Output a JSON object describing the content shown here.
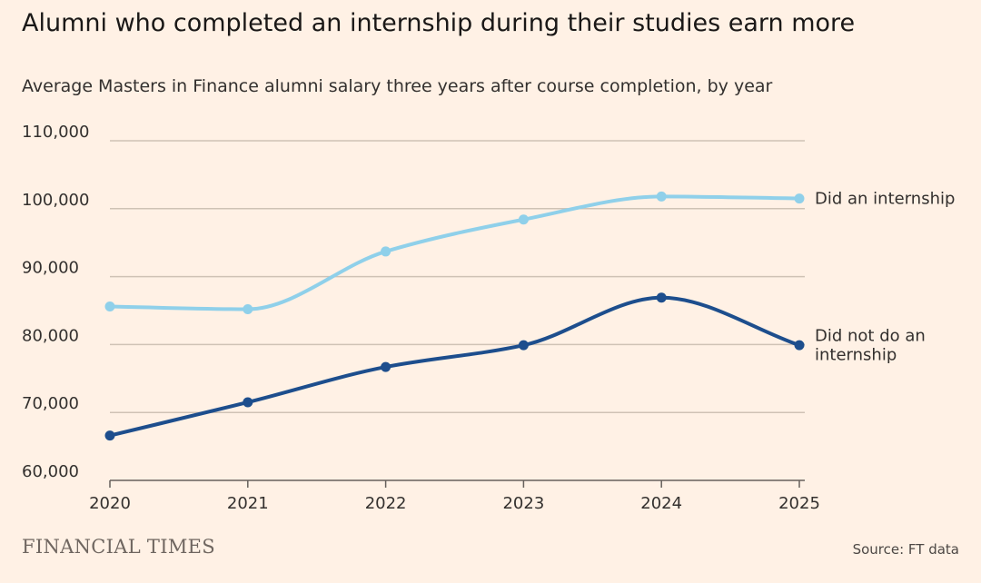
{
  "header": {
    "title": "Alumni who completed an internship during their studies earn more",
    "subtitle": "Average Masters in Finance alumni salary three years after course completion, by year"
  },
  "footer": {
    "logo_text": "FINANCIAL TIMES",
    "source": "Source: FT data"
  },
  "colors": {
    "background": "#FFF1E5",
    "gridline": "#CFC2B5",
    "axis": "#66605C",
    "internship": "#8FD0EA",
    "no_internship": "#1D4E8D"
  },
  "chart_data": {
    "type": "line",
    "x": [
      2020,
      2021,
      2022,
      2023,
      2024,
      2025
    ],
    "x_tick_labels": [
      "2020",
      "2021",
      "2022",
      "2023",
      "2024",
      "2025"
    ],
    "ylim": [
      60000,
      110000
    ],
    "y_ticks": [
      60000,
      70000,
      80000,
      90000,
      100000,
      110000
    ],
    "y_tick_labels": [
      "60,000",
      "70,000",
      "80,000",
      "90,000",
      "100,000",
      "110,000"
    ],
    "grid": true,
    "series": [
      {
        "name": "Did an internship",
        "label_lines": [
          "Did an internship"
        ],
        "values": [
          85600,
          85200,
          93700,
          98400,
          101800,
          101500
        ]
      },
      {
        "name": "Did not do an internship",
        "label_lines": [
          "Did not do an",
          "internship"
        ],
        "values": [
          66600,
          71500,
          76700,
          79900,
          86900,
          79900
        ]
      }
    ]
  }
}
